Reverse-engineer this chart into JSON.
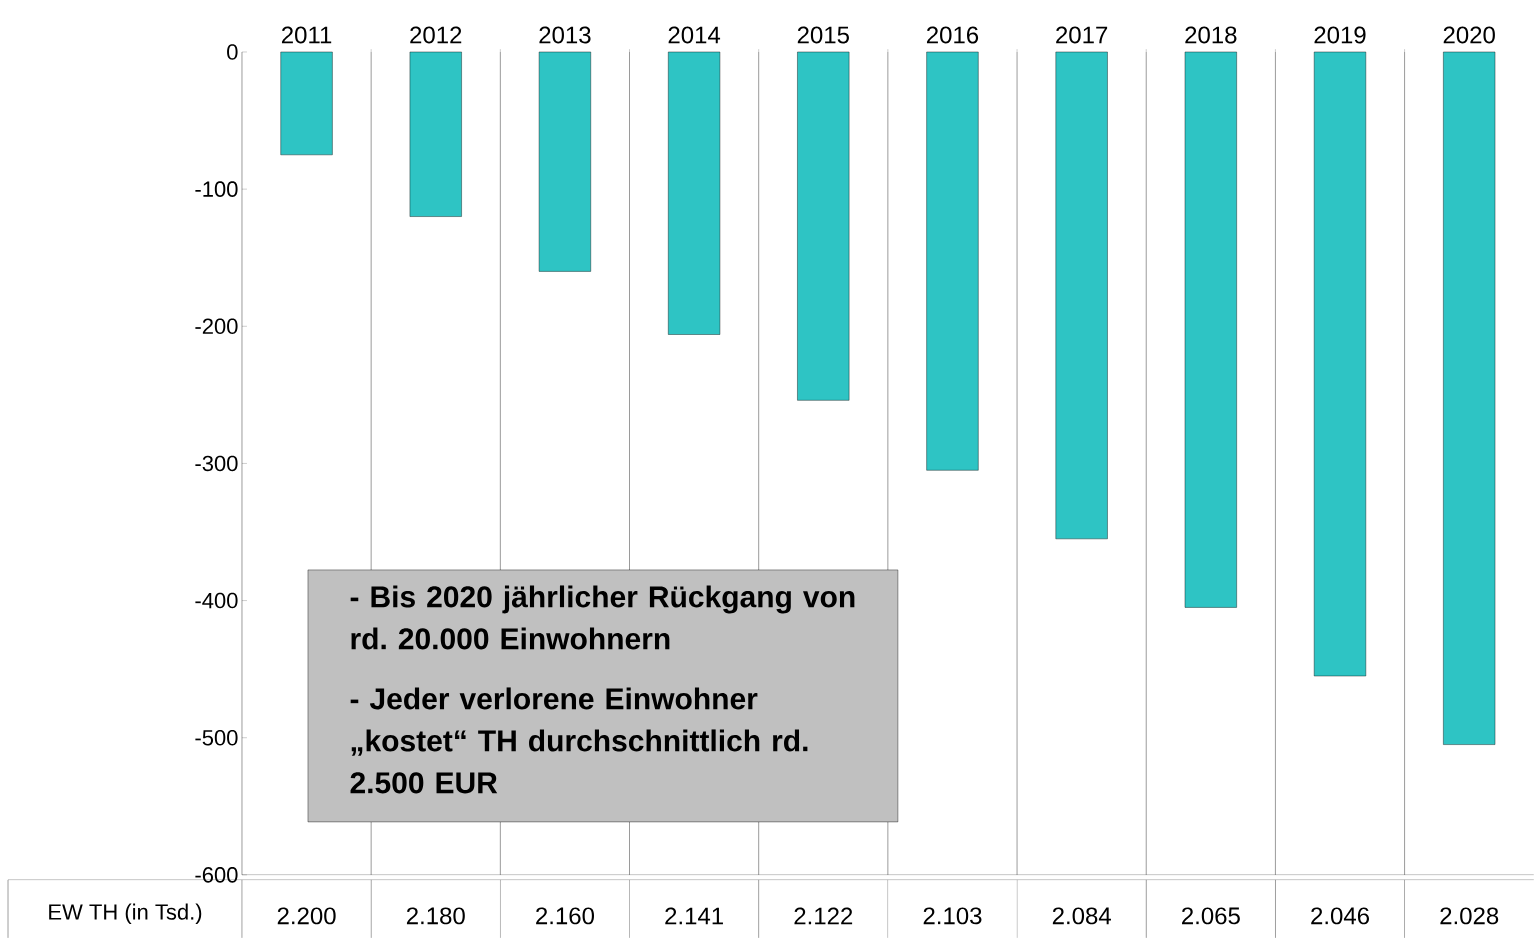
{
  "chart_data": {
    "type": "bar",
    "categories": [
      "2011",
      "2012",
      "2013",
      "2014",
      "2015",
      "2016",
      "2017",
      "2018",
      "2019",
      "2020"
    ],
    "values": [
      -75,
      -120,
      -160,
      -206,
      -254,
      -305,
      -355,
      -405,
      -455,
      -505
    ],
    "color": "#2ec4c4",
    "ylim": [
      -600,
      0
    ],
    "yticks": [
      -600,
      -500,
      -400,
      -300,
      -200,
      -100,
      0
    ],
    "grid": "x",
    "annotations": [
      "**- Bis 2020 jährlicher Rückgang von rd. 20.000 Einwohnern**",
      "**- Jeder verlorene Einwohner „kostet“ TH durchschnittlich rd. 2.500 EUR**",
      "EW TH (in Tsd.)",
      "2.200",
      "2.180",
      "2.160",
      "2.141",
      "2.122",
      "2.103",
      "2.084",
      "2.065",
      "2.046",
      "2.028"
    ]
  }
}
